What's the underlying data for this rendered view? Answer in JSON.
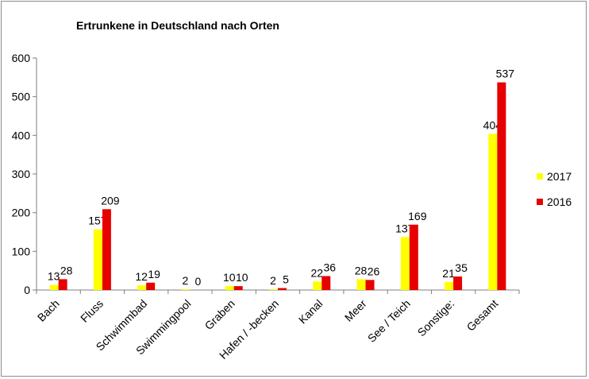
{
  "chart_data": {
    "type": "bar",
    "title": "Ertrunkene in Deutschland nach Orten",
    "categories": [
      "Bach",
      "Fluss",
      "Schwimmbad",
      "Swimmingpool",
      "Graben",
      "Hafen / -becken",
      "Kanal",
      "Meer",
      "See / Teich",
      "Sonstige:",
      "Gesamt"
    ],
    "series": [
      {
        "name": "2017",
        "color": "#ffff00",
        "values": [
          13,
          157,
          12,
          2,
          10,
          2,
          22,
          28,
          137,
          21,
          404
        ]
      },
      {
        "name": "2016",
        "color": "#e60000",
        "values": [
          28,
          209,
          19,
          0,
          10,
          5,
          36,
          26,
          169,
          35,
          537
        ]
      }
    ],
    "ylim": [
      0,
      600
    ],
    "yticks": [
      "0",
      "100",
      "200",
      "300",
      "400",
      "500",
      "600"
    ],
    "grid": false,
    "legend_position": "right"
  }
}
